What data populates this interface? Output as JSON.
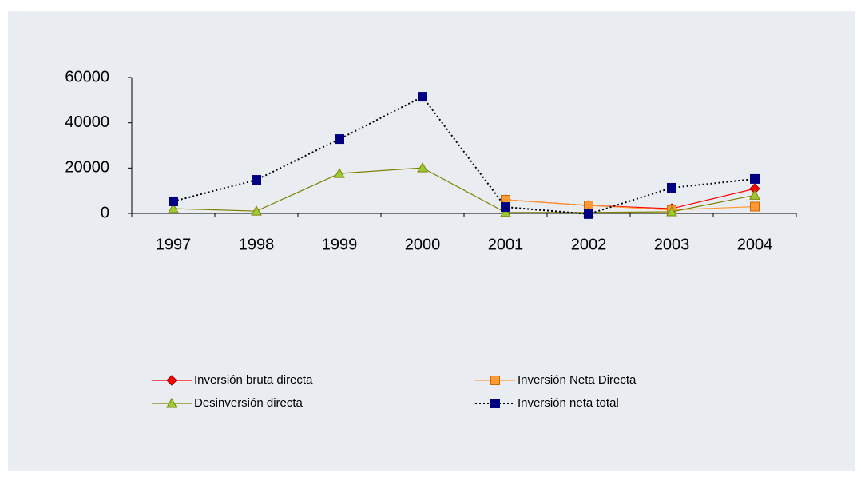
{
  "chart_data": {
    "type": "line",
    "categories": [
      "1997",
      "1998",
      "1999",
      "2000",
      "2001",
      "2002",
      "2003",
      "2004"
    ],
    "series": [
      {
        "name": "Inversión bruta directa",
        "color": "#ff0000",
        "line_color": "#ff0000",
        "marker": "diamond",
        "line_style": "solid",
        "values": [
          null,
          null,
          null,
          null,
          6000,
          3500,
          2100,
          10900
        ]
      },
      {
        "name": "Inversión Neta Directa",
        "color": "#ff9933",
        "line_color": "#ff9933",
        "marker": "square",
        "line_style": "solid",
        "values": [
          null,
          null,
          null,
          null,
          6000,
          3500,
          1500,
          3000
        ]
      },
      {
        "name": "Desinversión directa",
        "color": "#99cc33",
        "line_color": "#808000",
        "marker": "triangle",
        "line_style": "solid",
        "values": [
          2100,
          1000,
          17600,
          20100,
          400,
          400,
          700,
          8000
        ]
      },
      {
        "name": "Inversión neta total",
        "color": "#000080",
        "line_color": "#000000",
        "marker": "square",
        "line_style": "dotted",
        "values": [
          5300,
          14800,
          32800,
          51500,
          2800,
          -300,
          11300,
          15200
        ]
      }
    ],
    "ylim": [
      0,
      60000
    ],
    "yticks": [
      0,
      20000,
      40000,
      60000
    ],
    "grid": false,
    "legend": "bottom"
  }
}
